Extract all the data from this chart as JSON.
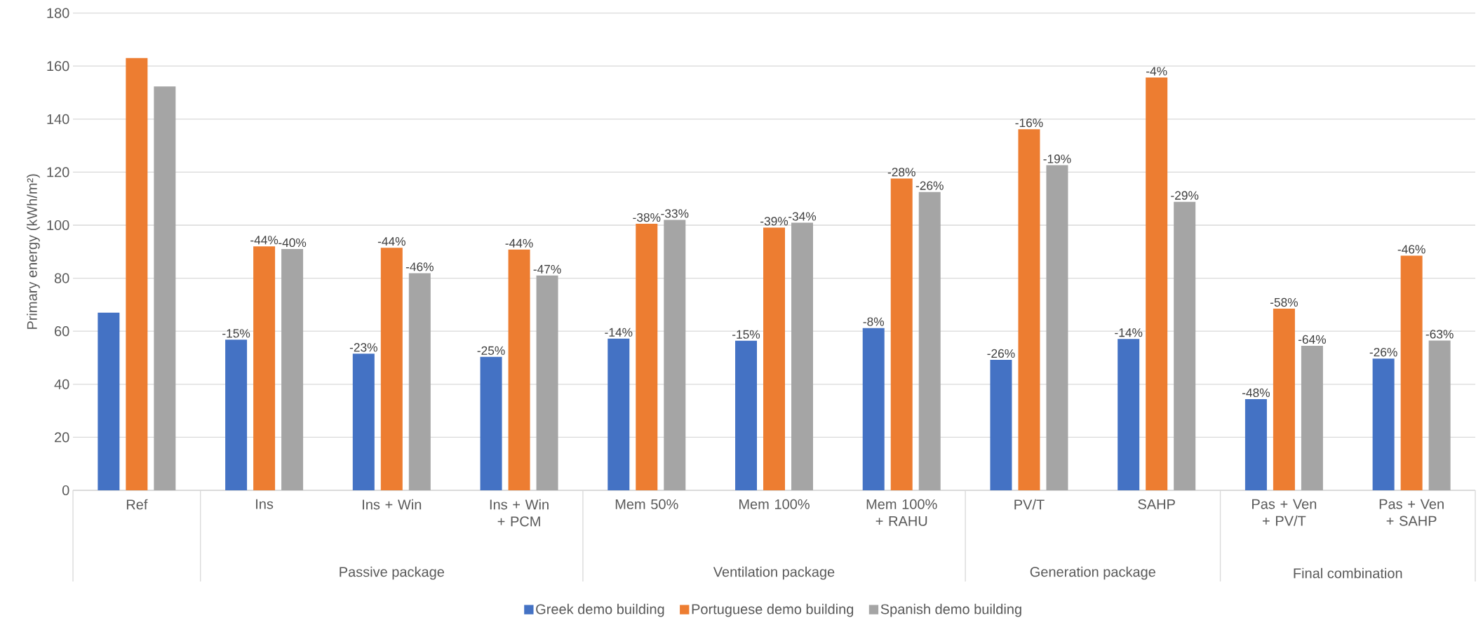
{
  "chart_data": {
    "type": "bar",
    "ylabel": "Primary energy (kWh/m²)",
    "categories": [
      "Ref",
      "Ins",
      "Ins + Win",
      "Ins + Win + PCM",
      "Mem 50%",
      "Mem 100%",
      "Mem 100% + RAHU",
      "PV/T",
      "SAHP",
      "Pas + Ven + PV/T",
      "Pas + Ven + SAHP"
    ],
    "series": [
      {
        "name": "Greek demo building",
        "color": "#4472c4",
        "values": [
          67,
          56.8,
          51.5,
          50.3,
          57.2,
          56.4,
          61.2,
          49.2,
          57.1,
          34.4,
          49.7
        ]
      },
      {
        "name": "Portuguese demo building",
        "color": "#ed7d31",
        "values": [
          163,
          92,
          91.5,
          90.8,
          100.5,
          99.1,
          117.6,
          136.2,
          155.7,
          68.5,
          88.5
        ]
      },
      {
        "name": "Spanish demo building",
        "color": "#a5a5a5",
        "values": [
          152.3,
          91,
          81.9,
          81,
          102,
          100.9,
          112.5,
          122.6,
          108.8,
          54.5,
          56.5
        ]
      }
    ],
    "annotations": [
      "Passive package",
      "Ventilation package",
      "Generation package",
      "Final combination",
      "-15%",
      "-44%",
      "-40%",
      "-23%",
      "-44%",
      "-46%",
      "-25%",
      "-44%",
      "-47%",
      "-14%",
      "-38%",
      "-33%",
      "-15%",
      "-39%",
      "-34%",
      "-8%",
      "-28%",
      "-26%",
      "-26%",
      "-16%",
      "-19%",
      "-14%",
      "-4%",
      "-29%",
      "-48%",
      "-58%",
      "-64%",
      "-26%",
      "-46%",
      "-63%"
    ],
    "ylim": [
      0,
      180
    ],
    "yticks": [
      0,
      20,
      40,
      60,
      80,
      100,
      120,
      140,
      160,
      180
    ],
    "grid": "y",
    "legend": "bottom"
  }
}
